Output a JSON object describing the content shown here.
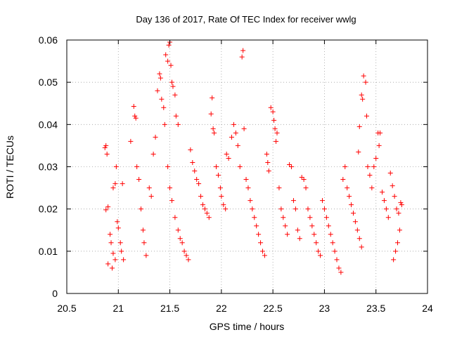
{
  "chart_data": {
    "type": "scatter",
    "title": "Day 136 of 2017, Rate Of TEC Index for receiver wwlg",
    "xlabel": "GPS time / hours",
    "ylabel": "ROTI / TECUs",
    "xlim": [
      20.5,
      24
    ],
    "ylim": [
      0,
      0.06
    ],
    "xticks": [
      20.5,
      21,
      21.5,
      22,
      22.5,
      23,
      23.5,
      24
    ],
    "xtick_labels": [
      "20.5",
      "21",
      "21.5",
      "22",
      "22.5",
      "23",
      "23.5",
      "24"
    ],
    "yticks": [
      0,
      0.01,
      0.02,
      0.03,
      0.04,
      0.05,
      0.06
    ],
    "ytick_labels": [
      "0",
      "0.01",
      "0.02",
      "0.03",
      "0.04",
      "0.05",
      "0.06"
    ],
    "grid": true,
    "marker": "+",
    "color": "#ff0000",
    "series": [
      {
        "name": "ROTI",
        "points": [
          [
            20.87,
            0.0345
          ],
          [
            20.88,
            0.035
          ],
          [
            20.89,
            0.033
          ],
          [
            20.9,
            0.0205
          ],
          [
            20.88,
            0.0198
          ],
          [
            20.92,
            0.014
          ],
          [
            20.93,
            0.012
          ],
          [
            20.95,
            0.0095
          ],
          [
            20.97,
            0.008
          ],
          [
            20.9,
            0.007
          ],
          [
            20.95,
            0.025
          ],
          [
            20.97,
            0.026
          ],
          [
            20.98,
            0.03
          ],
          [
            20.99,
            0.017
          ],
          [
            21.0,
            0.0155
          ],
          [
            21.02,
            0.012
          ],
          [
            21.03,
            0.01
          ],
          [
            21.04,
            0.026
          ],
          [
            21.05,
            0.008
          ],
          [
            20.94,
            0.006
          ],
          [
            21.12,
            0.036
          ],
          [
            21.15,
            0.0443
          ],
          [
            21.16,
            0.042
          ],
          [
            21.17,
            0.0415
          ],
          [
            21.18,
            0.03
          ],
          [
            21.2,
            0.027
          ],
          [
            21.22,
            0.02
          ],
          [
            21.24,
            0.015
          ],
          [
            21.25,
            0.012
          ],
          [
            21.27,
            0.009
          ],
          [
            21.3,
            0.025
          ],
          [
            21.32,
            0.023
          ],
          [
            21.34,
            0.033
          ],
          [
            21.36,
            0.037
          ],
          [
            21.38,
            0.048
          ],
          [
            21.4,
            0.052
          ],
          [
            21.41,
            0.051
          ],
          [
            21.42,
            0.046
          ],
          [
            21.44,
            0.044
          ],
          [
            21.45,
            0.04
          ],
          [
            21.46,
            0.0565
          ],
          [
            21.48,
            0.055
          ],
          [
            21.49,
            0.0588
          ],
          [
            21.5,
            0.0595
          ],
          [
            21.51,
            0.054
          ],
          [
            21.52,
            0.05
          ],
          [
            21.53,
            0.049
          ],
          [
            21.55,
            0.047
          ],
          [
            21.56,
            0.042
          ],
          [
            21.58,
            0.04
          ],
          [
            21.48,
            0.03
          ],
          [
            21.5,
            0.025
          ],
          [
            21.52,
            0.022
          ],
          [
            21.55,
            0.018
          ],
          [
            21.58,
            0.015
          ],
          [
            21.6,
            0.013
          ],
          [
            21.62,
            0.012
          ],
          [
            21.64,
            0.01
          ],
          [
            21.66,
            0.009
          ],
          [
            21.68,
            0.008
          ],
          [
            21.7,
            0.034
          ],
          [
            21.72,
            0.031
          ],
          [
            21.74,
            0.029
          ],
          [
            21.76,
            0.027
          ],
          [
            21.78,
            0.026
          ],
          [
            21.8,
            0.023
          ],
          [
            21.82,
            0.021
          ],
          [
            21.84,
            0.02
          ],
          [
            21.86,
            0.019
          ],
          [
            21.88,
            0.018
          ],
          [
            21.9,
            0.0425
          ],
          [
            21.91,
            0.0463
          ],
          [
            21.92,
            0.039
          ],
          [
            21.93,
            0.038
          ],
          [
            21.95,
            0.03
          ],
          [
            21.97,
            0.028
          ],
          [
            21.99,
            0.025
          ],
          [
            22.0,
            0.023
          ],
          [
            22.02,
            0.021
          ],
          [
            22.04,
            0.02
          ],
          [
            22.05,
            0.033
          ],
          [
            22.07,
            0.032
          ],
          [
            22.1,
            0.037
          ],
          [
            22.12,
            0.04
          ],
          [
            22.14,
            0.038
          ],
          [
            22.16,
            0.035
          ],
          [
            22.18,
            0.03
          ],
          [
            22.2,
            0.056
          ],
          [
            22.21,
            0.0575
          ],
          [
            22.22,
            0.039
          ],
          [
            22.24,
            0.027
          ],
          [
            22.26,
            0.025
          ],
          [
            22.28,
            0.022
          ],
          [
            22.3,
            0.02
          ],
          [
            22.32,
            0.018
          ],
          [
            22.34,
            0.016
          ],
          [
            22.36,
            0.014
          ],
          [
            22.38,
            0.012
          ],
          [
            22.4,
            0.01
          ],
          [
            22.42,
            0.009
          ],
          [
            22.44,
            0.033
          ],
          [
            22.45,
            0.031
          ],
          [
            22.46,
            0.029
          ],
          [
            22.48,
            0.044
          ],
          [
            22.5,
            0.043
          ],
          [
            22.51,
            0.041
          ],
          [
            22.52,
            0.039
          ],
          [
            22.53,
            0.036
          ],
          [
            22.54,
            0.038
          ],
          [
            22.56,
            0.025
          ],
          [
            22.58,
            0.02
          ],
          [
            22.6,
            0.018
          ],
          [
            22.62,
            0.016
          ],
          [
            22.64,
            0.014
          ],
          [
            22.66,
            0.0305
          ],
          [
            22.68,
            0.03
          ],
          [
            22.7,
            0.022
          ],
          [
            22.72,
            0.02
          ],
          [
            22.74,
            0.015
          ],
          [
            22.76,
            0.013
          ],
          [
            22.78,
            0.0275
          ],
          [
            22.8,
            0.027
          ],
          [
            22.82,
            0.025
          ],
          [
            22.84,
            0.02
          ],
          [
            22.86,
            0.018
          ],
          [
            22.88,
            0.016
          ],
          [
            22.9,
            0.014
          ],
          [
            22.92,
            0.012
          ],
          [
            22.94,
            0.01
          ],
          [
            22.96,
            0.009
          ],
          [
            22.98,
            0.022
          ],
          [
            23.0,
            0.02
          ],
          [
            23.02,
            0.018
          ],
          [
            23.04,
            0.016
          ],
          [
            23.06,
            0.014
          ],
          [
            23.08,
            0.012
          ],
          [
            23.1,
            0.01
          ],
          [
            23.12,
            0.008
          ],
          [
            23.14,
            0.006
          ],
          [
            23.16,
            0.005
          ],
          [
            23.18,
            0.027
          ],
          [
            23.2,
            0.03
          ],
          [
            23.22,
            0.025
          ],
          [
            23.24,
            0.023
          ],
          [
            23.26,
            0.021
          ],
          [
            23.28,
            0.019
          ],
          [
            23.3,
            0.017
          ],
          [
            23.32,
            0.015
          ],
          [
            23.34,
            0.013
          ],
          [
            23.36,
            0.011
          ],
          [
            23.33,
            0.0335
          ],
          [
            23.34,
            0.0395
          ],
          [
            23.36,
            0.047
          ],
          [
            23.37,
            0.046
          ],
          [
            23.38,
            0.0515
          ],
          [
            23.4,
            0.05
          ],
          [
            23.41,
            0.042
          ],
          [
            23.42,
            0.03
          ],
          [
            23.44,
            0.028
          ],
          [
            23.46,
            0.025
          ],
          [
            23.48,
            0.03
          ],
          [
            23.5,
            0.032
          ],
          [
            23.52,
            0.038
          ],
          [
            23.53,
            0.035
          ],
          [
            23.54,
            0.038
          ],
          [
            23.56,
            0.024
          ],
          [
            23.58,
            0.022
          ],
          [
            23.6,
            0.02
          ],
          [
            23.62,
            0.018
          ],
          [
            23.64,
            0.0285
          ],
          [
            23.66,
            0.0255
          ],
          [
            23.68,
            0.023
          ],
          [
            23.7,
            0.02
          ],
          [
            23.72,
            0.019
          ],
          [
            23.74,
            0.0215
          ],
          [
            23.75,
            0.021
          ],
          [
            23.73,
            0.015
          ],
          [
            23.71,
            0.012
          ],
          [
            23.69,
            0.01
          ],
          [
            23.67,
            0.008
          ]
        ]
      }
    ]
  }
}
